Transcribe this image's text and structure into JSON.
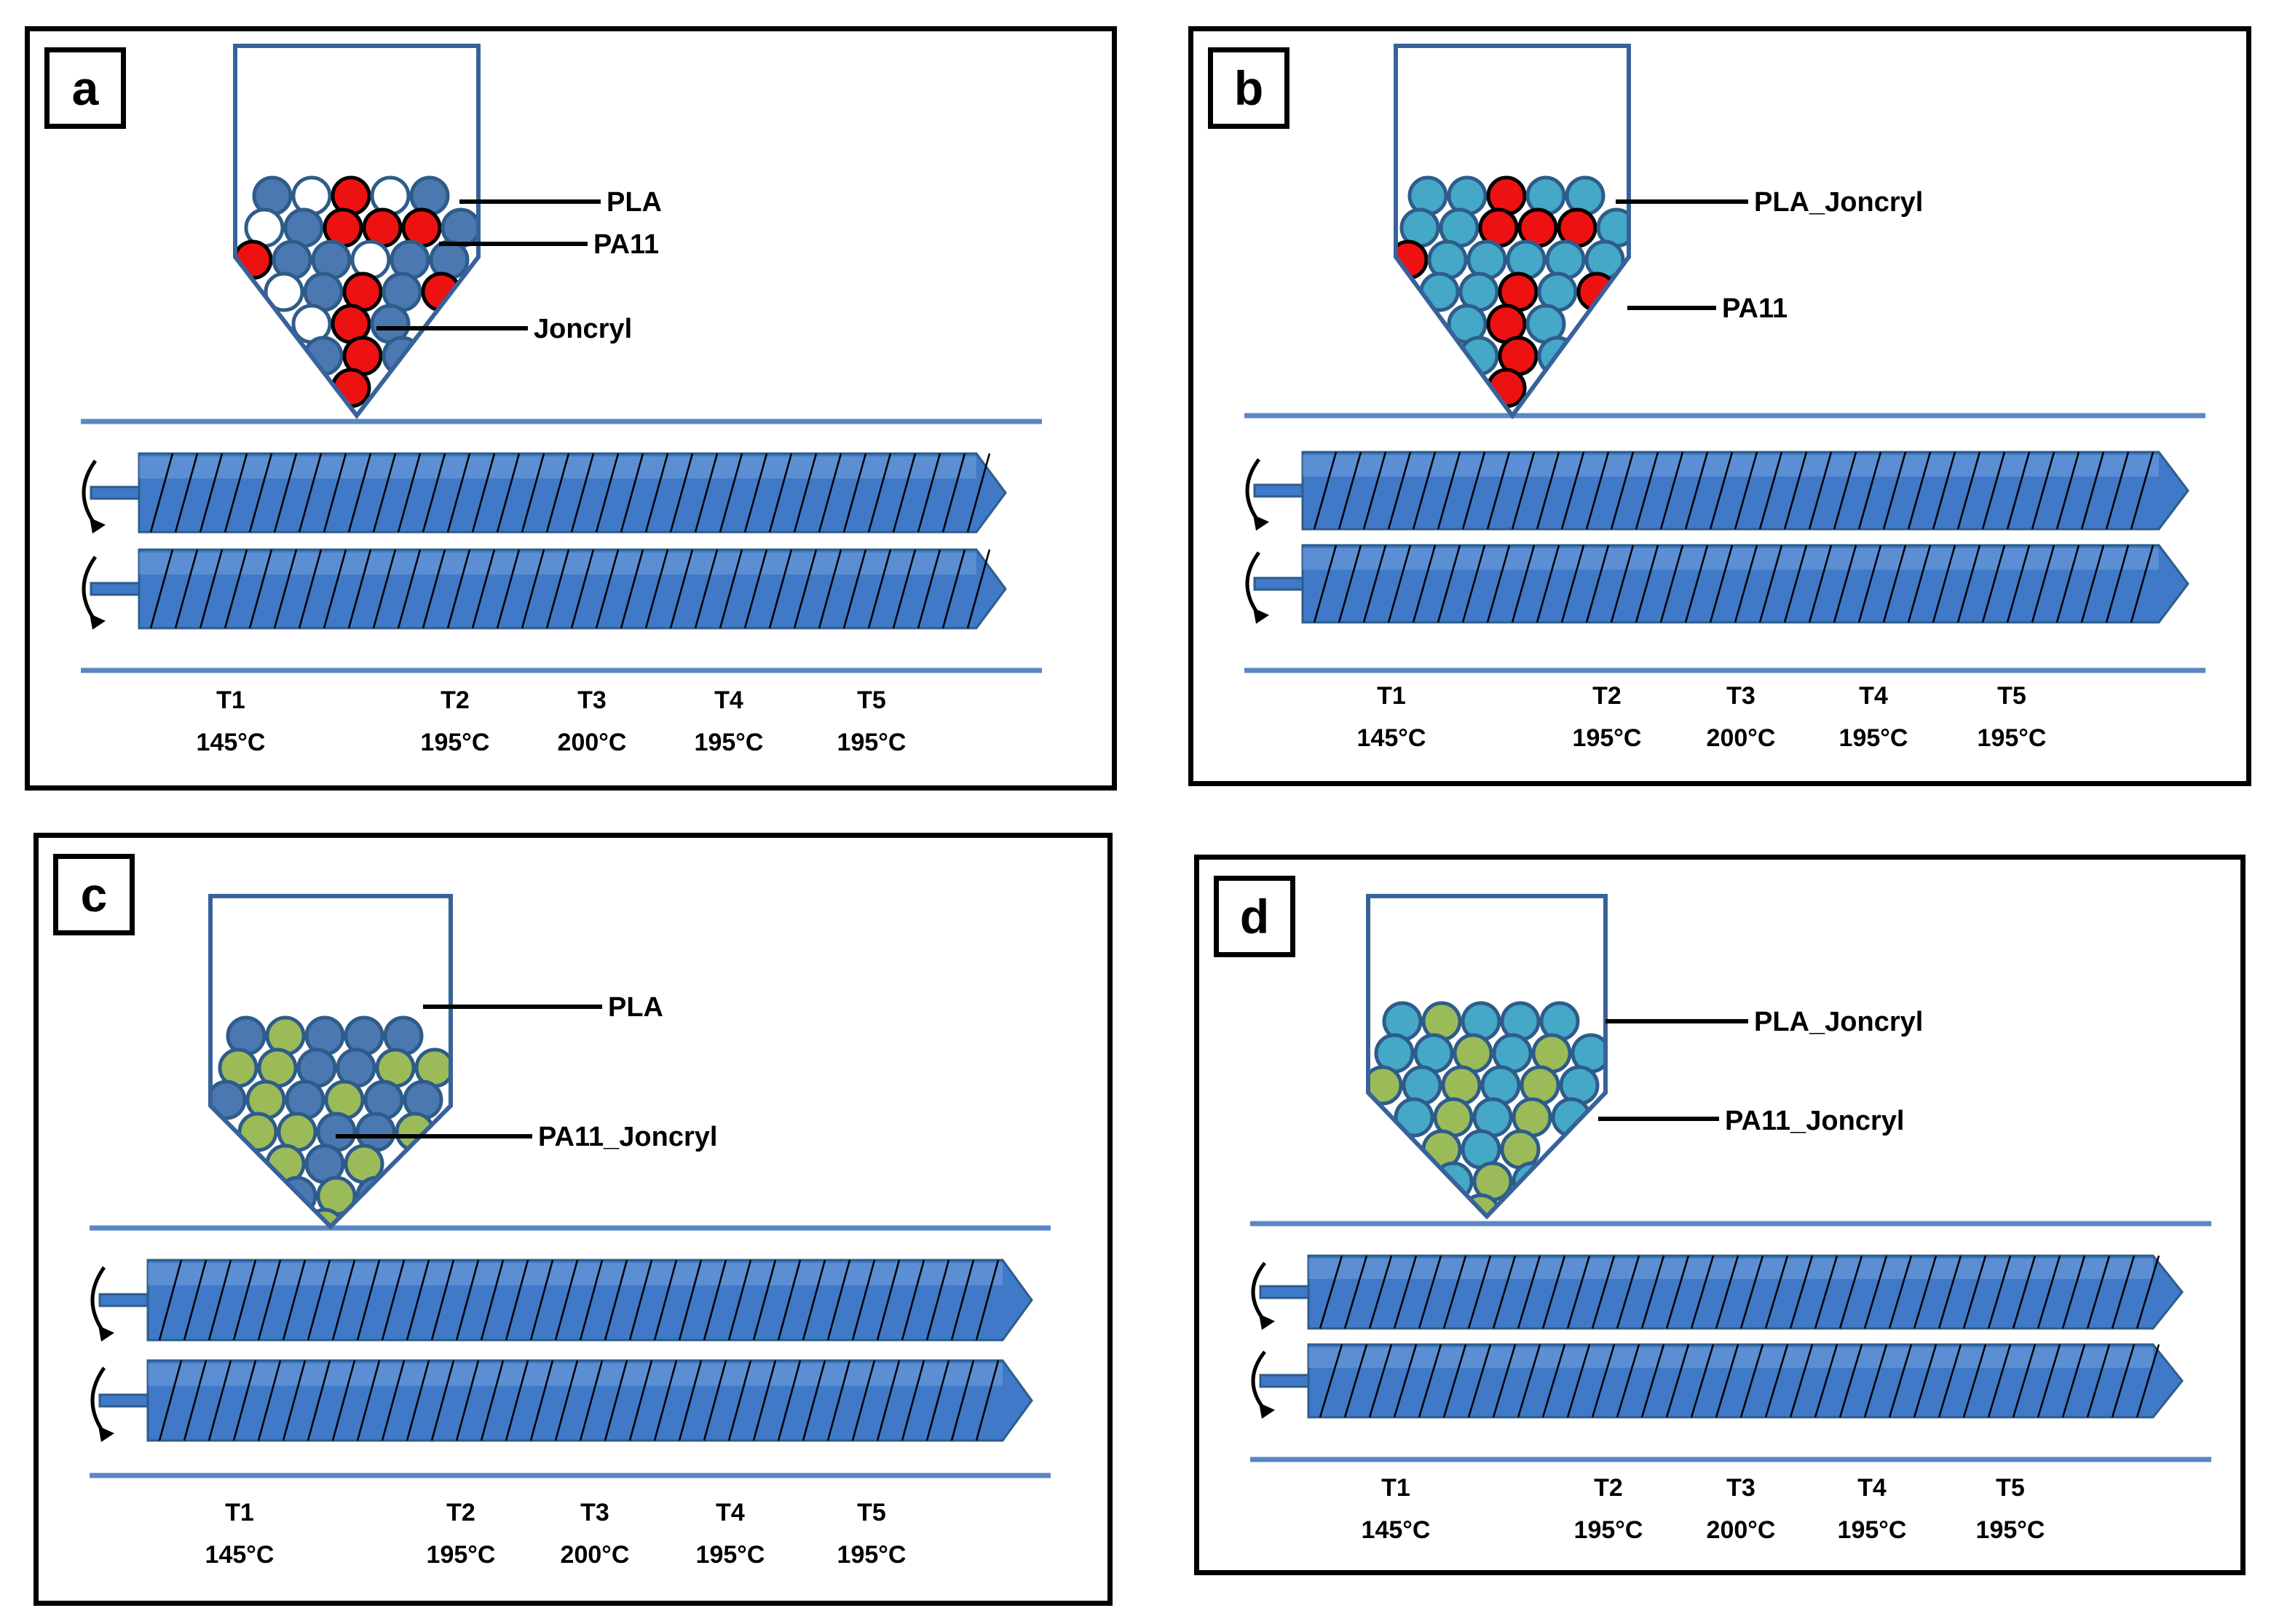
{
  "colors": {
    "pla": "#4B78B0",
    "pla_joncryl": "#44A8C6",
    "pa11": "#EE1111",
    "pa11_joncryl": "#9BBB59",
    "joncryl": "#FFFFFF",
    "screw": "#3F79C8",
    "hopper_stroke": "#37629A"
  },
  "zones_common": [
    {
      "name": "T1",
      "temp": "145°C"
    },
    {
      "name": "T2",
      "temp": "195°C"
    },
    {
      "name": "T3",
      "temp": "200°C"
    },
    {
      "name": "T4",
      "temp": "195°C"
    },
    {
      "name": "T5",
      "temp": "195°C"
    }
  ],
  "panels": [
    {
      "id": "a",
      "letter": "a",
      "palette": [
        "pla",
        "pa11",
        "joncryl"
      ],
      "labels": [
        "PLA",
        "PA11",
        "Joncryl"
      ],
      "zones": [
        {
          "name": "T1",
          "temp": "145°C"
        },
        {
          "name": "T2",
          "temp": "195°C"
        },
        {
          "name": "T3",
          "temp": "200°C"
        },
        {
          "name": "T4",
          "temp": "195°C"
        },
        {
          "name": "T5",
          "temp": "195°C"
        }
      ]
    },
    {
      "id": "b",
      "letter": "b",
      "palette": [
        "pla_joncryl",
        "pa11"
      ],
      "labels": [
        "PLA_Joncryl",
        "PA11"
      ],
      "zones": [
        {
          "name": "T1",
          "temp": "145°C"
        },
        {
          "name": "T2",
          "temp": "195°C"
        },
        {
          "name": "T3",
          "temp": "200°C"
        },
        {
          "name": "T4",
          "temp": "195°C"
        },
        {
          "name": "T5",
          "temp": "195°C"
        }
      ]
    },
    {
      "id": "c",
      "letter": "c",
      "palette": [
        "pla",
        "pa11_joncryl"
      ],
      "labels": [
        "PLA",
        "PA11_Joncryl"
      ],
      "zones": [
        {
          "name": "T1",
          "temp": "145°C"
        },
        {
          "name": "T2",
          "temp": "195°C"
        },
        {
          "name": "T3",
          "temp": "200°C"
        },
        {
          "name": "T4",
          "temp": "195°C"
        },
        {
          "name": "T5",
          "temp": "195°C"
        }
      ]
    },
    {
      "id": "d",
      "letter": "d",
      "palette": [
        "pla_joncryl",
        "pa11_joncryl"
      ],
      "labels": [
        "PLA_Joncryl",
        "PA11_Joncryl"
      ],
      "zones": [
        {
          "name": "T1",
          "temp": "145°C"
        },
        {
          "name": "T2",
          "temp": "195°C"
        },
        {
          "name": "T3",
          "temp": "200°C"
        },
        {
          "name": "T4",
          "temp": "195°C"
        },
        {
          "name": "T5",
          "temp": "195°C"
        }
      ]
    }
  ]
}
